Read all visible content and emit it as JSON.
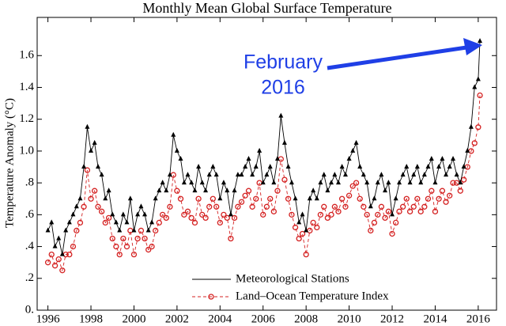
{
  "chart_data": {
    "type": "line",
    "title": "Monthly Mean Global Surface Temperature",
    "y_label": "Temperature Anomaly (°C)",
    "annotation": [
      "February",
      "2016"
    ],
    "annotation_color": "#1f3fe6",
    "xlim": [
      1995.5,
      2016.85
    ],
    "xticks": [
      1996,
      1998,
      2000,
      2002,
      2004,
      2006,
      2008,
      2010,
      2012,
      2014,
      2016
    ],
    "ylim": [
      0,
      1.84
    ],
    "yticks": [
      {
        "value": 0,
        "label": "0."
      },
      {
        "value": 0.2,
        "label": ".2"
      },
      {
        "value": 0.4,
        "label": ".4"
      },
      {
        "value": 0.6,
        "label": ".6"
      },
      {
        "value": 0.8,
        "label": ".8"
      },
      {
        "value": 1.0,
        "label": "1.0"
      },
      {
        "value": 1.2,
        "label": "1.2"
      },
      {
        "value": 1.4,
        "label": "1.4"
      },
      {
        "value": 1.6,
        "label": "1.6"
      }
    ],
    "legend": "lower center",
    "x": [
      1996.0,
      1996.17,
      1996.33,
      1996.5,
      1996.67,
      1996.83,
      1997.0,
      1997.17,
      1997.33,
      1997.5,
      1997.67,
      1997.83,
      1998.0,
      1998.17,
      1998.33,
      1998.5,
      1998.67,
      1998.83,
      1999.0,
      1999.17,
      1999.33,
      1999.5,
      1999.67,
      1999.83,
      2000.0,
      2000.17,
      2000.33,
      2000.5,
      2000.67,
      2000.83,
      2001.0,
      2001.17,
      2001.33,
      2001.5,
      2001.67,
      2001.83,
      2002.0,
      2002.17,
      2002.33,
      2002.5,
      2002.67,
      2002.83,
      2003.0,
      2003.17,
      2003.33,
      2003.5,
      2003.67,
      2003.83,
      2004.0,
      2004.17,
      2004.33,
      2004.5,
      2004.67,
      2004.83,
      2005.0,
      2005.17,
      2005.33,
      2005.5,
      2005.67,
      2005.83,
      2006.0,
      2006.17,
      2006.33,
      2006.5,
      2006.67,
      2006.83,
      2007.0,
      2007.17,
      2007.33,
      2007.5,
      2007.67,
      2007.83,
      2008.0,
      2008.17,
      2008.33,
      2008.5,
      2008.67,
      2008.83,
      2009.0,
      2009.17,
      2009.33,
      2009.5,
      2009.67,
      2009.83,
      2010.0,
      2010.17,
      2010.33,
      2010.5,
      2010.67,
      2010.83,
      2011.0,
      2011.17,
      2011.33,
      2011.5,
      2011.67,
      2011.83,
      2012.0,
      2012.17,
      2012.33,
      2012.5,
      2012.67,
      2012.83,
      2013.0,
      2013.17,
      2013.33,
      2013.5,
      2013.67,
      2013.83,
      2014.0,
      2014.17,
      2014.33,
      2014.5,
      2014.67,
      2014.83,
      2015.0,
      2015.17,
      2015.33,
      2015.5,
      2015.67,
      2015.83,
      2016.0,
      2016.08
    ],
    "series": [
      {
        "name": "Meteorological Stations",
        "color": "#000000",
        "marker": "triangle",
        "dash": "none",
        "values": [
          0.5,
          0.55,
          0.4,
          0.45,
          0.35,
          0.5,
          0.55,
          0.6,
          0.65,
          0.7,
          0.9,
          1.15,
          1.0,
          1.05,
          0.9,
          0.85,
          0.7,
          0.75,
          0.6,
          0.55,
          0.5,
          0.6,
          0.55,
          0.7,
          0.5,
          0.6,
          0.65,
          0.6,
          0.5,
          0.55,
          0.7,
          0.75,
          0.8,
          0.75,
          0.85,
          1.1,
          1.0,
          0.95,
          0.8,
          0.85,
          0.8,
          0.75,
          0.9,
          0.8,
          0.75,
          0.85,
          0.9,
          0.85,
          0.7,
          0.8,
          0.75,
          0.6,
          0.75,
          0.85,
          0.85,
          0.9,
          0.95,
          0.85,
          0.9,
          1.0,
          0.8,
          0.85,
          0.9,
          0.8,
          0.95,
          1.22,
          1.05,
          0.9,
          0.8,
          0.7,
          0.55,
          0.6,
          0.5,
          0.7,
          0.75,
          0.7,
          0.8,
          0.85,
          0.75,
          0.8,
          0.85,
          0.8,
          0.9,
          0.85,
          0.95,
          1.0,
          1.05,
          0.9,
          0.85,
          0.8,
          0.65,
          0.7,
          0.8,
          0.85,
          0.75,
          0.8,
          0.6,
          0.7,
          0.8,
          0.85,
          0.9,
          0.8,
          0.85,
          0.9,
          0.8,
          0.85,
          0.9,
          0.95,
          0.8,
          0.9,
          0.95,
          0.85,
          0.9,
          0.95,
          0.85,
          0.8,
          0.9,
          1.0,
          1.15,
          1.4,
          1.45,
          1.69
        ]
      },
      {
        "name": "Land–Ocean Temperature Index",
        "color": "#d42020",
        "marker": "circle",
        "dash": "4,3",
        "values": [
          0.3,
          0.35,
          0.28,
          0.32,
          0.25,
          0.35,
          0.35,
          0.4,
          0.5,
          0.55,
          0.65,
          0.88,
          0.7,
          0.75,
          0.65,
          0.62,
          0.55,
          0.58,
          0.45,
          0.4,
          0.35,
          0.45,
          0.4,
          0.5,
          0.35,
          0.45,
          0.5,
          0.45,
          0.38,
          0.4,
          0.5,
          0.55,
          0.6,
          0.58,
          0.65,
          0.85,
          0.75,
          0.7,
          0.6,
          0.62,
          0.58,
          0.55,
          0.7,
          0.6,
          0.58,
          0.65,
          0.7,
          0.65,
          0.55,
          0.6,
          0.58,
          0.45,
          0.58,
          0.65,
          0.68,
          0.72,
          0.75,
          0.65,
          0.7,
          0.8,
          0.6,
          0.65,
          0.7,
          0.62,
          0.75,
          0.95,
          0.82,
          0.7,
          0.6,
          0.52,
          0.45,
          0.48,
          0.35,
          0.5,
          0.55,
          0.52,
          0.6,
          0.65,
          0.58,
          0.6,
          0.65,
          0.62,
          0.7,
          0.65,
          0.72,
          0.78,
          0.8,
          0.7,
          0.65,
          0.6,
          0.5,
          0.55,
          0.6,
          0.65,
          0.58,
          0.62,
          0.48,
          0.55,
          0.62,
          0.65,
          0.7,
          0.62,
          0.65,
          0.7,
          0.62,
          0.65,
          0.7,
          0.75,
          0.62,
          0.7,
          0.75,
          0.68,
          0.72,
          0.8,
          0.8,
          0.75,
          0.82,
          0.9,
          1.0,
          1.05,
          1.15,
          1.35
        ]
      }
    ]
  }
}
